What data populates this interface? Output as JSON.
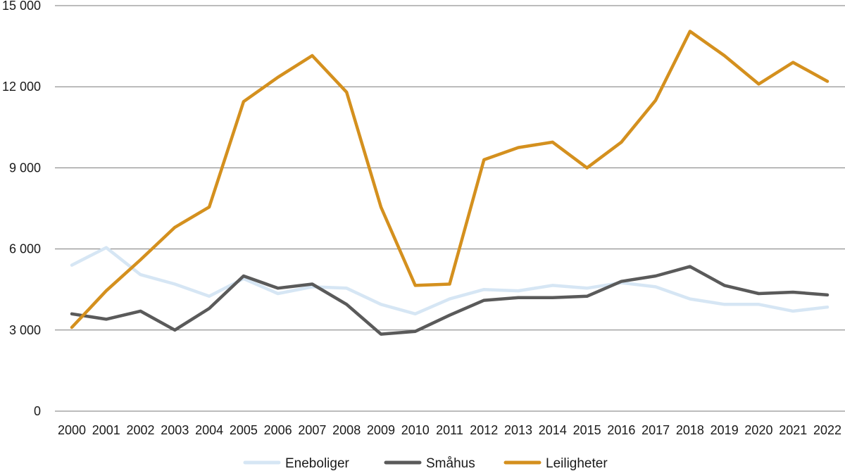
{
  "chart_data": {
    "type": "line",
    "title": "",
    "xlabel": "",
    "ylabel": "",
    "x": [
      "2000",
      "2001",
      "2002",
      "2003",
      "2004",
      "2005",
      "2006",
      "2007",
      "2008",
      "2009",
      "2010",
      "2011",
      "2012",
      "2013",
      "2014",
      "2015",
      "2016",
      "2017",
      "2018",
      "2019",
      "2020",
      "2021",
      "2022"
    ],
    "ylim": [
      0,
      15000
    ],
    "yticks": [
      0,
      3000,
      6000,
      9000,
      12000,
      15000
    ],
    "ytick_labels": [
      "0",
      "3 000",
      "6 000",
      "9 000",
      "12 000",
      "15 000"
    ],
    "grid": "horizontal",
    "legend_position": "bottom",
    "series": [
      {
        "name": "Eneboliger",
        "color": "#d6e6f4",
        "values": [
          5400,
          6050,
          5050,
          4700,
          4250,
          4900,
          4350,
          4600,
          4550,
          3950,
          3600,
          4150,
          4500,
          4450,
          4650,
          4550,
          4750,
          4600,
          4150,
          3950,
          3950,
          3700,
          3850
        ]
      },
      {
        "name": "Småhus",
        "color": "#5a5a5a",
        "values": [
          3600,
          3400,
          3700,
          3000,
          3800,
          5000,
          4550,
          4700,
          3950,
          2850,
          2950,
          3550,
          4100,
          4200,
          4200,
          4250,
          4800,
          5000,
          5350,
          4650,
          4350,
          4400,
          4300
        ]
      },
      {
        "name": "Leiligheter",
        "color": "#d4901e",
        "values": [
          3100,
          4450,
          5600,
          6800,
          7550,
          11450,
          12350,
          13150,
          11800,
          7550,
          4650,
          4700,
          9300,
          9750,
          9950,
          9000,
          9950,
          11500,
          14050,
          13150,
          12100,
          12900,
          12200
        ]
      }
    ]
  }
}
